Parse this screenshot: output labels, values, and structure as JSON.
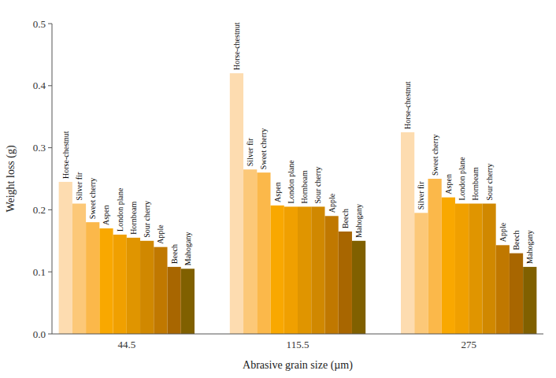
{
  "chart_data": {
    "type": "bar",
    "categories": [
      "44.5",
      "115.5",
      "275"
    ],
    "series": [
      {
        "name": "Horse-chestnut",
        "color": "#FDDCB0",
        "values": [
          0.245,
          0.42,
          0.325
        ]
      },
      {
        "name": "Silver fir",
        "color": "#FCC878",
        "values": [
          0.21,
          0.265,
          0.195
        ]
      },
      {
        "name": "Sweet cherry",
        "color": "#FBB84A",
        "values": [
          0.18,
          0.26,
          0.25
        ]
      },
      {
        "name": "Aspen",
        "color": "#F9A800",
        "values": [
          0.17,
          0.207,
          0.22
        ]
      },
      {
        "name": "London plane",
        "color": "#F0A000",
        "values": [
          0.16,
          0.205,
          0.21
        ]
      },
      {
        "name": "Hornbeam",
        "color": "#E09500",
        "values": [
          0.155,
          0.205,
          0.21
        ]
      },
      {
        "name": "Sour cherry",
        "color": "#D08800",
        "values": [
          0.15,
          0.205,
          0.21
        ]
      },
      {
        "name": "Apple",
        "color": "#C07800",
        "values": [
          0.14,
          0.19,
          0.143
        ]
      },
      {
        "name": "Beech",
        "color": "#A86600",
        "values": [
          0.108,
          0.165,
          0.13
        ]
      },
      {
        "name": "Mahogany",
        "color": "#806000",
        "values": [
          0.105,
          0.15,
          0.108
        ]
      }
    ],
    "xlabel": "Abrasive grain size (µm)",
    "ylabel": "Weight loss (g)",
    "ylim": [
      0.0,
      0.5
    ],
    "yticks": [
      {
        "value": 0.0,
        "label": "0.0"
      },
      0.1,
      0.2,
      0.3,
      0.4,
      0.5
    ],
    "grid": false
  }
}
